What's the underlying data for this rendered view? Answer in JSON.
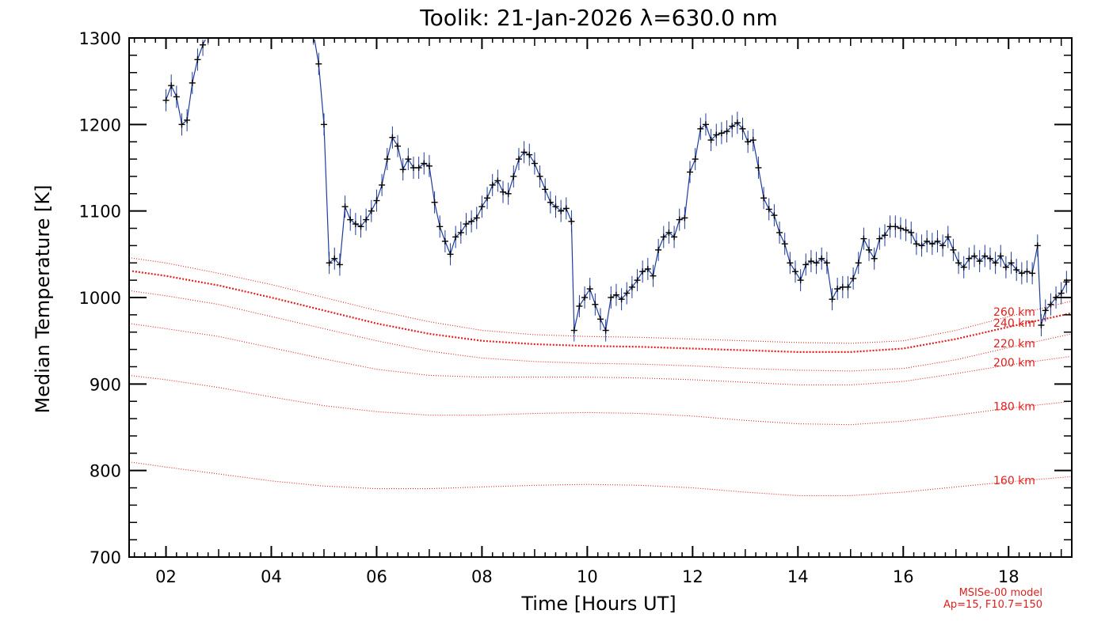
{
  "chart_data": {
    "type": "line",
    "title": "Toolik: 21-Jan-2026 λ=630.0 nm",
    "xlabel": "Time [Hours UT]",
    "ylabel": "Median Temperature [K]",
    "xlim": [
      1.3,
      19.2
    ],
    "ylim": [
      700,
      1300
    ],
    "x_ticks": [
      2,
      4,
      6,
      8,
      10,
      12,
      14,
      16,
      18
    ],
    "x_tick_labels": [
      "02",
      "04",
      "06",
      "08",
      "10",
      "12",
      "14",
      "16",
      "18"
    ],
    "y_ticks": [
      700,
      800,
      900,
      1000,
      1100,
      1200,
      1300
    ],
    "y_tick_labels": [
      "700",
      "800",
      "900",
      "1000",
      "1100",
      "1200",
      "1300"
    ],
    "grid": false,
    "measured_series": {
      "color": "#1f3d9c",
      "marker_color": "#000000",
      "points": [
        [
          2.0,
          1228
        ],
        [
          2.1,
          1245
        ],
        [
          2.2,
          1232
        ],
        [
          2.3,
          1200
        ],
        [
          2.4,
          1205
        ],
        [
          2.5,
          1248
        ],
        [
          2.6,
          1275
        ],
        [
          2.7,
          1292
        ],
        [
          2.8,
          1305
        ],
        [
          4.8,
          1305
        ],
        [
          4.9,
          1270
        ],
        [
          5.0,
          1200
        ],
        [
          5.1,
          1040
        ],
        [
          5.2,
          1045
        ],
        [
          5.3,
          1038
        ],
        [
          5.4,
          1105
        ],
        [
          5.5,
          1090
        ],
        [
          5.6,
          1085
        ],
        [
          5.7,
          1082
        ],
        [
          5.8,
          1090
        ],
        [
          5.9,
          1100
        ],
        [
          6.0,
          1112
        ],
        [
          6.1,
          1130
        ],
        [
          6.2,
          1160
        ],
        [
          6.3,
          1185
        ],
        [
          6.4,
          1175
        ],
        [
          6.5,
          1148
        ],
        [
          6.6,
          1160
        ],
        [
          6.7,
          1150
        ],
        [
          6.8,
          1150
        ],
        [
          6.9,
          1155
        ],
        [
          7.0,
          1152
        ],
        [
          7.1,
          1110
        ],
        [
          7.2,
          1082
        ],
        [
          7.3,
          1065
        ],
        [
          7.4,
          1050
        ],
        [
          7.5,
          1070
        ],
        [
          7.6,
          1075
        ],
        [
          7.7,
          1085
        ],
        [
          7.8,
          1088
        ],
        [
          7.9,
          1092
        ],
        [
          8.0,
          1105
        ],
        [
          8.1,
          1115
        ],
        [
          8.2,
          1130
        ],
        [
          8.3,
          1135
        ],
        [
          8.4,
          1122
        ],
        [
          8.5,
          1120
        ],
        [
          8.6,
          1140
        ],
        [
          8.7,
          1160
        ],
        [
          8.8,
          1168
        ],
        [
          8.9,
          1165
        ],
        [
          9.0,
          1155
        ],
        [
          9.1,
          1140
        ],
        [
          9.2,
          1125
        ],
        [
          9.3,
          1110
        ],
        [
          9.4,
          1105
        ],
        [
          9.5,
          1100
        ],
        [
          9.6,
          1103
        ],
        [
          9.7,
          1088
        ],
        [
          9.75,
          962
        ],
        [
          9.85,
          990
        ],
        [
          9.95,
          1000
        ],
        [
          10.05,
          1010
        ],
        [
          10.15,
          992
        ],
        [
          10.25,
          975
        ],
        [
          10.35,
          962
        ],
        [
          10.45,
          1000
        ],
        [
          10.55,
          1003
        ],
        [
          10.65,
          998
        ],
        [
          10.75,
          1005
        ],
        [
          10.85,
          1012
        ],
        [
          10.95,
          1020
        ],
        [
          11.05,
          1030
        ],
        [
          11.15,
          1033
        ],
        [
          11.25,
          1025
        ],
        [
          11.35,
          1055
        ],
        [
          11.45,
          1070
        ],
        [
          11.55,
          1075
        ],
        [
          11.65,
          1070
        ],
        [
          11.75,
          1090
        ],
        [
          11.85,
          1092
        ],
        [
          11.95,
          1145
        ],
        [
          12.05,
          1160
        ],
        [
          12.15,
          1195
        ],
        [
          12.25,
          1200
        ],
        [
          12.35,
          1182
        ],
        [
          12.45,
          1188
        ],
        [
          12.55,
          1190
        ],
        [
          12.65,
          1192
        ],
        [
          12.75,
          1198
        ],
        [
          12.85,
          1202
        ],
        [
          12.95,
          1195
        ],
        [
          13.05,
          1180
        ],
        [
          13.15,
          1182
        ],
        [
          13.25,
          1150
        ],
        [
          13.35,
          1115
        ],
        [
          13.45,
          1102
        ],
        [
          13.55,
          1095
        ],
        [
          13.65,
          1075
        ],
        [
          13.75,
          1062
        ],
        [
          13.85,
          1040
        ],
        [
          13.95,
          1030
        ],
        [
          14.05,
          1020
        ],
        [
          14.15,
          1038
        ],
        [
          14.25,
          1042
        ],
        [
          14.35,
          1040
        ],
        [
          14.45,
          1045
        ],
        [
          14.55,
          1040
        ],
        [
          14.65,
          998
        ],
        [
          14.75,
          1010
        ],
        [
          14.85,
          1012
        ],
        [
          14.95,
          1012
        ],
        [
          15.05,
          1022
        ],
        [
          15.15,
          1040
        ],
        [
          15.25,
          1068
        ],
        [
          15.35,
          1055
        ],
        [
          15.45,
          1045
        ],
        [
          15.55,
          1068
        ],
        [
          15.65,
          1072
        ],
        [
          15.75,
          1082
        ],
        [
          15.85,
          1082
        ],
        [
          15.95,
          1080
        ],
        [
          16.05,
          1078
        ],
        [
          16.15,
          1075
        ],
        [
          16.25,
          1062
        ],
        [
          16.35,
          1060
        ],
        [
          16.45,
          1065
        ],
        [
          16.55,
          1062
        ],
        [
          16.65,
          1065
        ],
        [
          16.75,
          1060
        ],
        [
          16.85,
          1070
        ],
        [
          16.95,
          1055
        ],
        [
          17.05,
          1040
        ],
        [
          17.15,
          1035
        ],
        [
          17.25,
          1045
        ],
        [
          17.35,
          1048
        ],
        [
          17.45,
          1042
        ],
        [
          17.55,
          1048
        ],
        [
          17.65,
          1045
        ],
        [
          17.75,
          1040
        ],
        [
          17.85,
          1048
        ],
        [
          17.95,
          1035
        ],
        [
          18.05,
          1040
        ],
        [
          18.15,
          1032
        ],
        [
          18.25,
          1028
        ],
        [
          18.35,
          1030
        ],
        [
          18.45,
          1028
        ],
        [
          18.55,
          1060
        ],
        [
          18.62,
          968
        ],
        [
          18.7,
          985
        ],
        [
          18.8,
          992
        ],
        [
          18.9,
          1000
        ],
        [
          19.0,
          1005
        ],
        [
          19.1,
          1018
        ]
      ]
    },
    "model_series": [
      {
        "name": "260 km",
        "values": [
          1046,
          1040,
          1028,
          1015,
          1000,
          985,
          972,
          962,
          957,
          955,
          954,
          952,
          950,
          948,
          947,
          950,
          962,
          978,
          996
        ]
      },
      {
        "name": "240 km",
        "values": [
          1031,
          1025,
          1014,
          1000,
          985,
          970,
          958,
          950,
          946,
          944,
          943,
          941,
          939,
          937,
          937,
          941,
          952,
          966,
          982
        ]
      },
      {
        "name": "220 km",
        "values": [
          1008,
          1002,
          992,
          978,
          964,
          950,
          938,
          930,
          926,
          924,
          923,
          921,
          918,
          916,
          915,
          918,
          928,
          942,
          958
        ]
      },
      {
        "name": "200 km",
        "values": [
          970,
          964,
          955,
          942,
          929,
          917,
          910,
          908,
          908,
          908,
          907,
          905,
          902,
          899,
          899,
          903,
          912,
          922,
          932
        ]
      },
      {
        "name": "180 km",
        "values": [
          910,
          905,
          896,
          885,
          875,
          868,
          864,
          864,
          866,
          867,
          866,
          863,
          858,
          854,
          853,
          857,
          864,
          872,
          880
        ]
      },
      {
        "name": "160 km",
        "values": [
          810,
          804,
          796,
          788,
          782,
          779,
          779,
          781,
          783,
          784,
          783,
          780,
          775,
          771,
          771,
          775,
          781,
          787,
          793
        ]
      }
    ],
    "model_x": [
      1.3,
      2,
      3,
      4,
      5,
      6,
      7,
      8,
      9,
      10,
      11,
      12,
      13,
      14,
      15,
      16,
      17,
      18,
      19.2
    ],
    "model_color": "#e0201e",
    "model_note": [
      "MSISe-00 model",
      "Ap=15, F10.7=150"
    ]
  }
}
